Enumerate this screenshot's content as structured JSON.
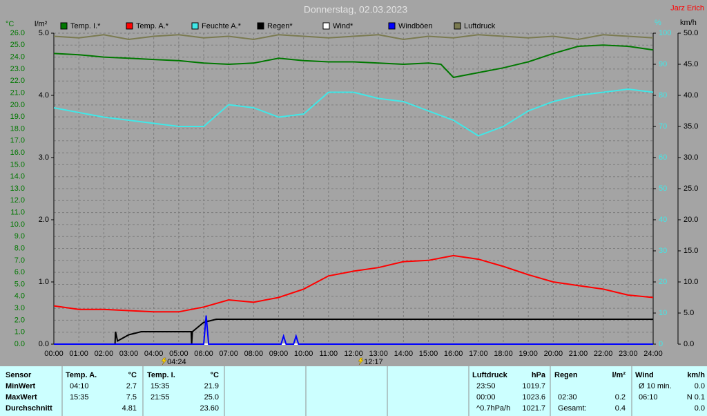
{
  "chart_data": {
    "type": "line",
    "title": "Donnerstag, 02.03.2023",
    "author": "Jarz Erich",
    "y_label": "°C",
    "y3_label": "l/m²",
    "y2_label": "%",
    "y4_label": "km/h",
    "xlim": [
      0,
      24
    ],
    "xticks": [
      {
        "value": 0,
        "label": "00:00"
      },
      {
        "value": 1,
        "label": "01:00"
      },
      {
        "value": 2,
        "label": "02:00"
      },
      {
        "value": 3,
        "label": "03:00"
      },
      {
        "value": 4,
        "label": "04:00"
      },
      {
        "value": 5,
        "label": "05:00"
      },
      {
        "value": 6,
        "label": "06:00"
      },
      {
        "value": 7,
        "label": "07:00"
      },
      {
        "value": 8,
        "label": "08:00"
      },
      {
        "value": 9,
        "label": "09:00"
      },
      {
        "value": 10,
        "label": "10:00"
      },
      {
        "value": 11,
        "label": "11:00"
      },
      {
        "value": 12,
        "label": "12:00"
      },
      {
        "value": 13,
        "label": "13:00"
      },
      {
        "value": 14,
        "label": "14:00"
      },
      {
        "value": 15,
        "label": "15:00"
      },
      {
        "value": 16,
        "label": "16:00"
      },
      {
        "value": 17,
        "label": "17:00"
      },
      {
        "value": 18,
        "label": "18:00"
      },
      {
        "value": 19,
        "label": "19:00"
      },
      {
        "value": 20,
        "label": "20:00"
      },
      {
        "value": 21,
        "label": "21:00"
      },
      {
        "value": 22,
        "label": "22:00"
      },
      {
        "value": 23,
        "label": "23:00"
      },
      {
        "value": 24,
        "label": "24:00"
      }
    ],
    "ylim": [
      0,
      26
    ],
    "yticks": [
      {
        "value": 0,
        "label": "0.0"
      },
      {
        "value": 1,
        "label": "1.0"
      },
      {
        "value": 2,
        "label": "2.0"
      },
      {
        "value": 3,
        "label": "3.0"
      },
      {
        "value": 4,
        "label": "4.0"
      },
      {
        "value": 5,
        "label": "5.0"
      },
      {
        "value": 6,
        "label": "6.0"
      },
      {
        "value": 7,
        "label": "7.0"
      },
      {
        "value": 8,
        "label": "8.0"
      },
      {
        "value": 9,
        "label": "9.0"
      },
      {
        "value": 10,
        "label": "10.0"
      },
      {
        "value": 11,
        "label": "11.0"
      },
      {
        "value": 12,
        "label": "12.0"
      },
      {
        "value": 13,
        "label": "13.0"
      },
      {
        "value": 14,
        "label": "14.0"
      },
      {
        "value": 15,
        "label": "15.0"
      },
      {
        "value": 16,
        "label": "16.0"
      },
      {
        "value": 17,
        "label": "17.0"
      },
      {
        "value": 18,
        "label": "18.0"
      },
      {
        "value": 19,
        "label": "19.0"
      },
      {
        "value": 20,
        "label": "20.0"
      },
      {
        "value": 21,
        "label": "21.0"
      },
      {
        "value": 22,
        "label": "22.0"
      },
      {
        "value": 23,
        "label": "23.0"
      },
      {
        "value": 24,
        "label": "24.0"
      },
      {
        "value": 25,
        "label": "25.0"
      },
      {
        "value": 26,
        "label": "26.0"
      }
    ],
    "y2lim": [
      0,
      100
    ],
    "y2ticks": [
      0,
      10,
      20,
      30,
      40,
      50,
      60,
      70,
      80,
      90,
      100
    ],
    "y3lim": [
      0,
      5
    ],
    "y3ticks": [
      {
        "value": 0,
        "label": "0.0"
      },
      {
        "value": 1,
        "label": "1.0"
      },
      {
        "value": 2,
        "label": "2.0"
      },
      {
        "value": 3,
        "label": "3.0"
      },
      {
        "value": 4,
        "label": "4.0"
      },
      {
        "value": 5,
        "label": "5.0"
      }
    ],
    "y4lim": [
      0,
      50
    ],
    "y4ticks": [
      {
        "value": 0,
        "label": "0.0"
      },
      {
        "value": 5,
        "label": "5.0"
      },
      {
        "value": 10,
        "label": "10.0"
      },
      {
        "value": 15,
        "label": "15.0"
      },
      {
        "value": 20,
        "label": "20.0"
      },
      {
        "value": 25,
        "label": "25.0"
      },
      {
        "value": 30,
        "label": "30.0"
      },
      {
        "value": 35,
        "label": "35.0"
      },
      {
        "value": 40,
        "label": "40.0"
      },
      {
        "value": 45,
        "label": "45.0"
      },
      {
        "value": 50,
        "label": "50.0"
      }
    ],
    "grid": true,
    "series": [
      {
        "name": "Temp. I.*",
        "color": "#007800",
        "axis": "y",
        "x": [
          0,
          1,
          2,
          3,
          4,
          5,
          6,
          7,
          8,
          9,
          10,
          11,
          12,
          13,
          14,
          15,
          15.5,
          16,
          17,
          18,
          19,
          20,
          21,
          22,
          23,
          24
        ],
        "values": [
          24.3,
          24.2,
          24.0,
          23.9,
          23.8,
          23.7,
          23.5,
          23.4,
          23.5,
          23.9,
          23.7,
          23.6,
          23.6,
          23.5,
          23.4,
          23.5,
          23.4,
          22.3,
          22.7,
          23.1,
          23.6,
          24.3,
          24.9,
          25.0,
          24.9,
          24.6
        ]
      },
      {
        "name": "Temp. A.*",
        "color": "#ff0000",
        "axis": "y",
        "x": [
          0,
          1,
          2,
          3,
          4,
          5,
          6,
          7,
          8,
          9,
          10,
          11,
          12,
          13,
          14,
          15,
          16,
          17,
          18,
          19,
          20,
          21,
          22,
          23,
          24
        ],
        "values": [
          3.2,
          2.9,
          2.9,
          2.8,
          2.7,
          2.7,
          3.1,
          3.7,
          3.5,
          3.9,
          4.6,
          5.7,
          6.1,
          6.4,
          6.9,
          7.0,
          7.4,
          7.1,
          6.5,
          5.8,
          5.2,
          4.9,
          4.6,
          4.1,
          3.9
        ]
      },
      {
        "name": "Feuchte A.*",
        "color": "#40e8e8",
        "axis": "y2",
        "x": [
          0,
          1,
          2,
          3,
          4,
          5,
          6,
          7,
          8,
          9,
          10,
          11,
          12,
          13,
          14,
          15,
          16,
          17,
          18,
          19,
          20,
          21,
          22,
          23,
          24
        ],
        "values": [
          76,
          74.5,
          73,
          72,
          71,
          70,
          70,
          77,
          76,
          73,
          74,
          81,
          81,
          79,
          78,
          75,
          72,
          67,
          70,
          75,
          78,
          80,
          81,
          82,
          81
        ]
      },
      {
        "name": "Regen*",
        "color": "#000000",
        "axis": "y3",
        "x": [
          0,
          2.45,
          2.47,
          2.55,
          3,
          3.5,
          5.5,
          5.52,
          5.55,
          6,
          6.5,
          24
        ],
        "values": [
          0,
          0,
          0.2,
          0.05,
          0.15,
          0.2,
          0.2,
          0,
          0.2,
          0.35,
          0.4,
          0.4
        ]
      },
      {
        "name": "Wind*",
        "color": "#ffffff",
        "axis": "y4",
        "x": [
          0,
          24
        ],
        "values": [
          0,
          0
        ]
      },
      {
        "name": "Windböen",
        "color": "#0000ff",
        "axis": "y4",
        "x": [
          0,
          6.0,
          6.1,
          6.2,
          9.1,
          9.2,
          9.3,
          9.6,
          9.7,
          9.8,
          24
        ],
        "values": [
          0,
          0,
          4.6,
          0,
          0,
          1.3,
          0,
          0,
          1.3,
          0,
          0
        ]
      },
      {
        "name": "Luftdruck",
        "color": "#7a7a50",
        "axis": "y2",
        "x": [
          0,
          1,
          2,
          3,
          4,
          5,
          6,
          7,
          8,
          9,
          10,
          11,
          12,
          13,
          14,
          15,
          16,
          17,
          18,
          19,
          20,
          21,
          22,
          23,
          24
        ],
        "values": [
          99,
          98.5,
          99.5,
          98,
          99,
          99.5,
          98.5,
          99,
          98,
          99.5,
          99,
          98.5,
          99,
          99.5,
          98,
          99,
          98.5,
          99.5,
          99,
          98.5,
          99,
          98,
          99.5,
          99,
          98.5
        ]
      }
    ],
    "annotations": [
      {
        "x": 4.4,
        "label": "04:24"
      },
      {
        "x": 12.28,
        "label": "12:17"
      }
    ]
  },
  "table": {
    "sensor": {
      "header": [
        "Sensor",
        "Temp. A.",
        "°C",
        "Temp. I.",
        "°C"
      ],
      "rows": [
        [
          "MinWert",
          "04:10",
          "2.7",
          "15:35",
          "21.9"
        ],
        [
          "MaxWert",
          "15:35",
          "7.5",
          "21:55",
          "25.0"
        ],
        [
          "Durchschnitt",
          null,
          "4.81",
          null,
          "23.60"
        ]
      ]
    },
    "pressure": {
      "header": [
        "Luftdruck",
        "hPa"
      ],
      "rows": [
        [
          "23:50",
          "1019.7"
        ],
        [
          "00:00",
          "1023.6"
        ],
        [
          "^0.7hPa/h",
          "1021.7"
        ]
      ]
    },
    "rain": {
      "header": [
        "Regen",
        "l/m²"
      ],
      "rows": [
        [
          null,
          null
        ],
        [
          "02:30",
          "0.2"
        ],
        [
          "Gesamt:",
          "0.4"
        ]
      ]
    },
    "wind": {
      "header": [
        "Wind",
        "km/h"
      ],
      "rows": [
        [
          "Ø 10 min.",
          "0.0"
        ],
        [
          "06:10",
          "N 0.1"
        ],
        [
          null,
          "0.0"
        ]
      ]
    }
  }
}
